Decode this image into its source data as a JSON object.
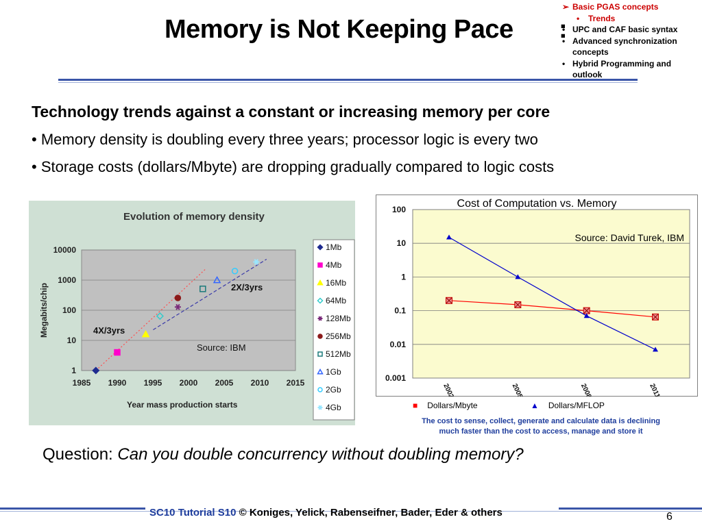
{
  "slide": {
    "title": "Memory is Not Keeping Pace",
    "title_colon": ":",
    "outline": [
      {
        "marker": "➢",
        "label": "Basic PGAS concepts",
        "active": true
      },
      {
        "marker": "•",
        "label": "Trends",
        "sub": true,
        "active": true
      },
      {
        "marker": "•",
        "label": "UPC and CAF basic syntax"
      },
      {
        "marker": "•",
        "label": "Advanced synchronization concepts"
      },
      {
        "marker": "•",
        "label": "Hybrid Programming and outlook"
      }
    ],
    "heading": "Technology trends against a constant or increasing memory per core",
    "bullets": [
      "• Memory density is doubling every three years; processor logic is every two",
      "• Storage costs (dollars/Mbyte) are dropping gradually compared to logic costs"
    ],
    "question_label": "Question: ",
    "question_text": "Can you double concurrency without doubling memory?",
    "footer_tutorial": "SC10 Tutorial S10",
    "footer_authors": " © Koniges, Yelick, Rabenseifner, Bader, Eder & others",
    "page_number": "6"
  },
  "colors": {
    "accent_blue": "#1d3c9c",
    "rule_blue": "#3a55a8",
    "active_red": "#cc0000"
  },
  "chart_data": [
    {
      "type": "scatter",
      "title": "Evolution of memory density",
      "xlabel": "Year mass production starts",
      "ylabel": "Megabits/chip",
      "yscale": "log",
      "xlim": [
        1985,
        2015
      ],
      "ylim": [
        1,
        10000
      ],
      "xticks": [
        "1985",
        "1990",
        "1995",
        "2000",
        "2005",
        "2010",
        "2015"
      ],
      "yticks": [
        "1",
        "10",
        "100",
        "1000",
        "10000"
      ],
      "grid": true,
      "legend_position": "right",
      "source": "Source: IBM",
      "annotations": [
        "4X/3yrs",
        "2X/3yrs"
      ],
      "series": [
        {
          "name": "1Mb",
          "x": 1987,
          "y": 1,
          "color": "#1f2b8f",
          "marker": "diamond"
        },
        {
          "name": "4Mb",
          "x": 1990,
          "y": 4,
          "color": "#ff00cc",
          "marker": "square"
        },
        {
          "name": "16Mb",
          "x": 1994,
          "y": 16,
          "color": "#ffff00",
          "marker": "triangle"
        },
        {
          "name": "64Mb",
          "x": 1996,
          "y": 64,
          "color": "#33cccc",
          "marker": "diamond-open"
        },
        {
          "name": "128Mb",
          "x": 1998.5,
          "y": 128,
          "color": "#7a2a7a",
          "marker": "star"
        },
        {
          "name": "256Mb",
          "x": 1998.5,
          "y": 256,
          "color": "#8b1a1a",
          "marker": "circle"
        },
        {
          "name": "512Mb",
          "x": 2002,
          "y": 512,
          "color": "#1a7a7a",
          "marker": "square-open"
        },
        {
          "name": "1Gb",
          "x": 2004,
          "y": 1000,
          "color": "#3366ff",
          "marker": "triangle-open"
        },
        {
          "name": "2Gb",
          "x": 2006.5,
          "y": 2000,
          "color": "#33ccff",
          "marker": "circle-open"
        },
        {
          "name": "4Gb",
          "x": 2009.5,
          "y": 4000,
          "color": "#99e6ff",
          "marker": "star"
        }
      ]
    },
    {
      "type": "line",
      "title": "Cost of Computation vs. Memory",
      "source": "Source: David Turek, IBM",
      "yscale": "log",
      "ylim": [
        0.001,
        100
      ],
      "yticks": [
        "100",
        "10",
        "1",
        "0.1",
        "0.01",
        "0.001"
      ],
      "x": [
        "2002",
        "2005",
        "2008",
        "2011"
      ],
      "grid": true,
      "legend_position": "bottom",
      "series": [
        {
          "name": "Dollars/Mbyte",
          "color": "#ff0000",
          "values": [
            0.2,
            0.15,
            0.1,
            0.065
          ]
        },
        {
          "name": "Dollars/MFLOP",
          "color": "#0000cc",
          "values": [
            15,
            1,
            0.07,
            0.007
          ]
        }
      ],
      "caption": "The cost to sense, collect, generate and calculate data is declining much faster than the cost to access, manage and store it"
    }
  ]
}
